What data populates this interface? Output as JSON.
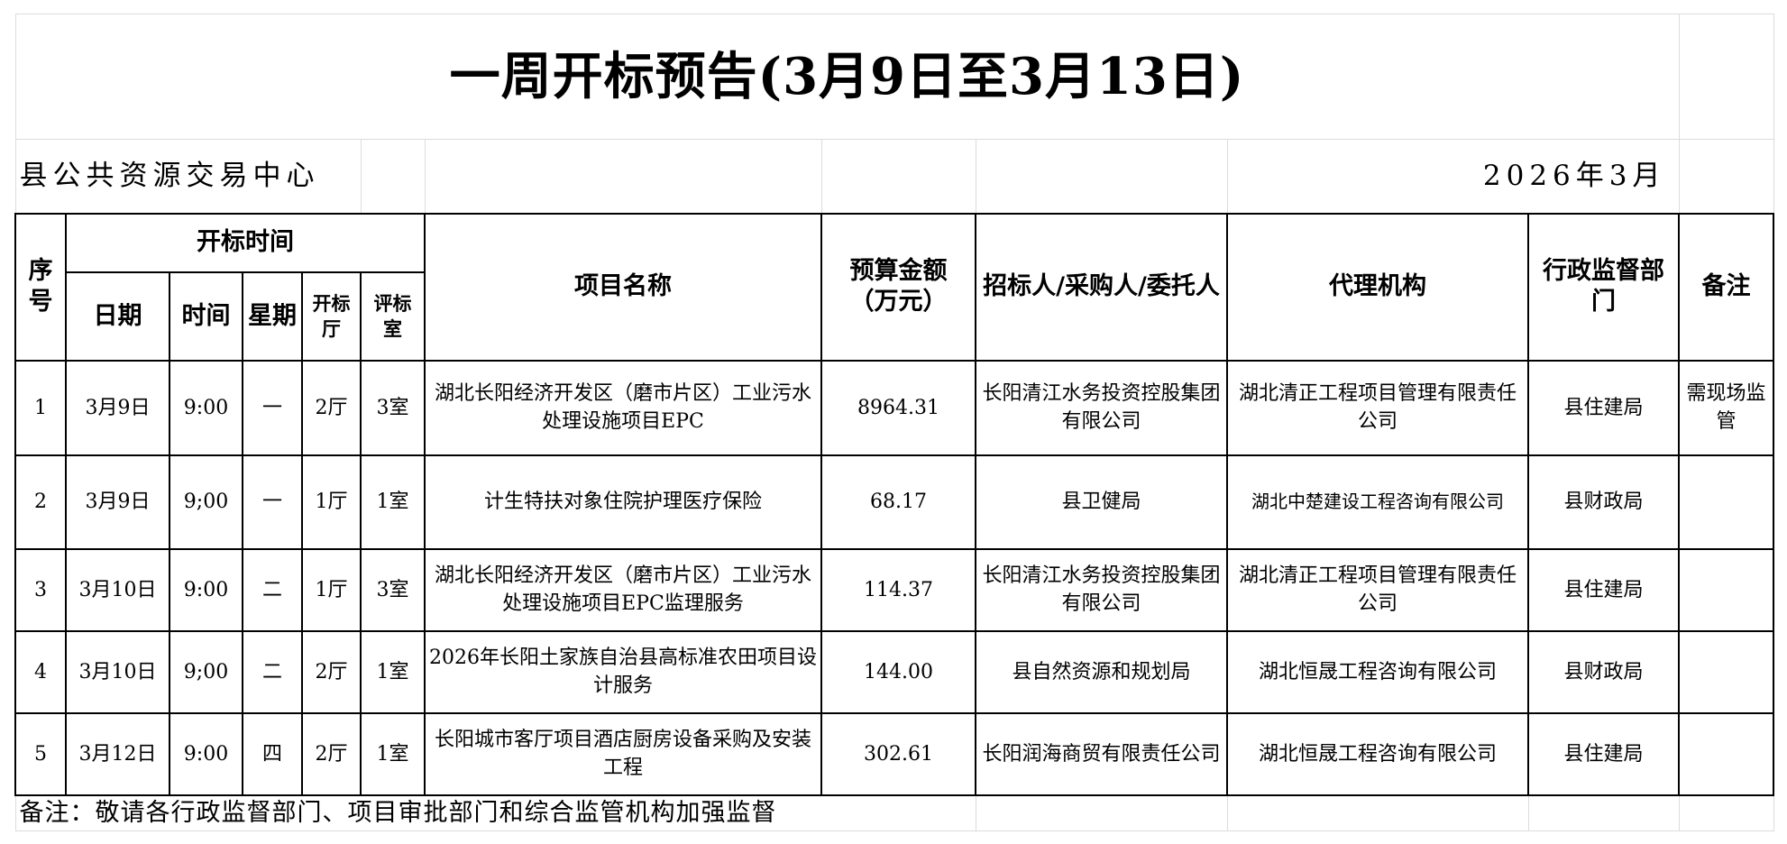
{
  "title": "一周开标预告(3月9日至3月13日)",
  "organization": "县公共资源交易中心",
  "date": "2026年3月",
  "headers": {
    "seq": "序号",
    "bid_time": "开标时间",
    "date": "日期",
    "time": "时间",
    "weekday": "星期",
    "hall": "开标厅",
    "room": "评标室",
    "project": "项目名称",
    "budget": "预算金额（万元）",
    "tenderer": "招标人/采购人/委托人",
    "agency": "代理机构",
    "supervisor": "行政监督部门",
    "remark": "备注"
  },
  "rows": [
    {
      "seq": "1",
      "date": "3月9日",
      "time": "9:00",
      "weekday": "一",
      "hall": "2厅",
      "room": "3室",
      "project": "湖北长阳经济开发区（磨市片区）工业污水处理设施项目EPC",
      "budget": "8964.31",
      "tenderer": "长阳清江水务投资控股集团有限公司",
      "agency": "湖北清正工程项目管理有限责任公司",
      "supervisor": "县住建局",
      "remark": "需现场监管"
    },
    {
      "seq": "2",
      "date": "3月9日",
      "time": "9;00",
      "weekday": "一",
      "hall": "1厅",
      "room": "1室",
      "project": "计生特扶对象住院护理医疗保险",
      "budget": "68.17",
      "tenderer": "县卫健局",
      "agency": "湖北中楚建设工程咨询有限公司",
      "supervisor": "县财政局",
      "remark": ""
    },
    {
      "seq": "3",
      "date": "3月10日",
      "time": "9:00",
      "weekday": "二",
      "hall": "1厅",
      "room": "3室",
      "project": "湖北长阳经济开发区（磨市片区）工业污水处理设施项目EPC监理服务",
      "budget": "114.37",
      "tenderer": "长阳清江水务投资控股集团有限公司",
      "agency": "湖北清正工程项目管理有限责任公司",
      "supervisor": "县住建局",
      "remark": ""
    },
    {
      "seq": "4",
      "date": "3月10日",
      "time": "9;00",
      "weekday": "二",
      "hall": "2厅",
      "room": "1室",
      "project": "2026年长阳土家族自治县高标准农田项目设计服务",
      "budget": "144.00",
      "tenderer": "县自然资源和规划局",
      "agency": "湖北恒晟工程咨询有限公司",
      "supervisor": "县财政局",
      "remark": ""
    },
    {
      "seq": "5",
      "date": "3月12日",
      "time": "9:00",
      "weekday": "四",
      "hall": "2厅",
      "room": "1室",
      "project": "长阳城市客厅项目酒店厨房设备采购及安装工程",
      "budget": "302.61",
      "tenderer": "长阳润海商贸有限责任公司",
      "agency": "湖北恒晟工程咨询有限公司",
      "supervisor": "县住建局",
      "remark": ""
    }
  ],
  "footer_note": "备注：敬请各行政监督部门、项目审批部门和综合监管机构加强监督"
}
